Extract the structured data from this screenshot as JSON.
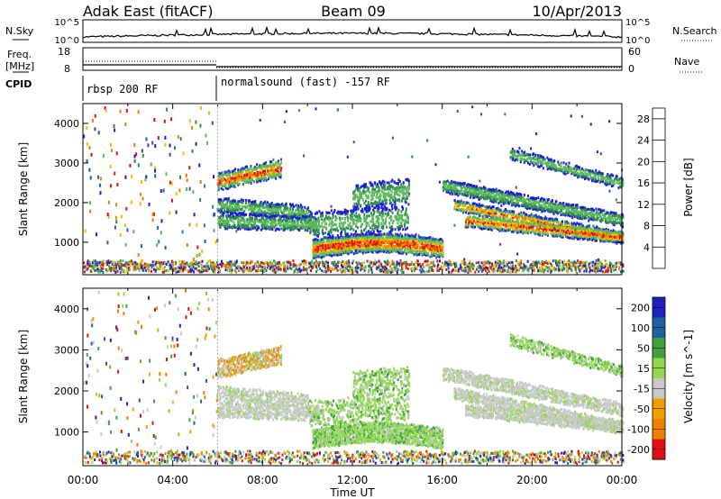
{
  "header": {
    "station": "Adak East (fitACF)",
    "beam": "Beam 09",
    "date": "10/Apr/2013"
  },
  "top_panels": {
    "nsky_label": "N.Sky",
    "nsearch_label": "N.Search",
    "left_scale": [
      "10^5",
      "10^0"
    ],
    "right_scale": [
      "10^5",
      "10^0"
    ],
    "freq_label": "Freq.",
    "freq_unit": "[MHz]",
    "freq_ticks": [
      "18",
      "8"
    ],
    "nave_label": "Nave",
    "nave_ticks": [
      "60",
      "0"
    ],
    "cpid_label": "CPID",
    "cpid_segments": [
      "rbsp 200 RF",
      "normalsound (fast) -157 RF"
    ]
  },
  "colors": {
    "power": [
      "#1a1adc",
      "#2a56a8",
      "#2e8a4e",
      "#5cb85c",
      "#f0c000",
      "#f08000",
      "#e01010"
    ],
    "velocity": [
      "#e01010",
      "#f08000",
      "#f0a000",
      "#c8c8c8",
      "#90d850",
      "#40a040",
      "#2060a0",
      "#2020c0"
    ]
  },
  "chart_data": [
    {
      "type": "heatmap",
      "title": "Power",
      "ylabel": "Slant Range [km]",
      "xlabel": "Time UT",
      "x_ticks": [
        "00:00",
        "04:00",
        "08:00",
        "12:00",
        "16:00",
        "20:00",
        "00:00"
      ],
      "xlim_hours": [
        0,
        24
      ],
      "y_ticks": [
        "1000",
        "2000",
        "3000",
        "4000"
      ],
      "ylim": [
        180,
        4500
      ],
      "colorbar_label": "Power [dB]",
      "colorbar_ticks": [
        "4",
        "8",
        "12",
        "16",
        "20",
        "24",
        "28"
      ],
      "colorbar_range": [
        0,
        30
      ]
    },
    {
      "type": "heatmap",
      "title": "Velocity",
      "ylabel": "Slant Range [km]",
      "xlabel": "Time UT",
      "x_ticks": [
        "00:00",
        "04:00",
        "08:00",
        "12:00",
        "16:00",
        "20:00",
        "00:00"
      ],
      "xlim_hours": [
        0,
        24
      ],
      "y_ticks": [
        "1000",
        "2000",
        "3000",
        "4000"
      ],
      "ylim": [
        180,
        4500
      ],
      "colorbar_label": "Velocity [m s^-1]",
      "colorbar_ticks": [
        "200",
        "100",
        "50",
        "15",
        "-15",
        "-50",
        "-100",
        "-200"
      ]
    }
  ]
}
